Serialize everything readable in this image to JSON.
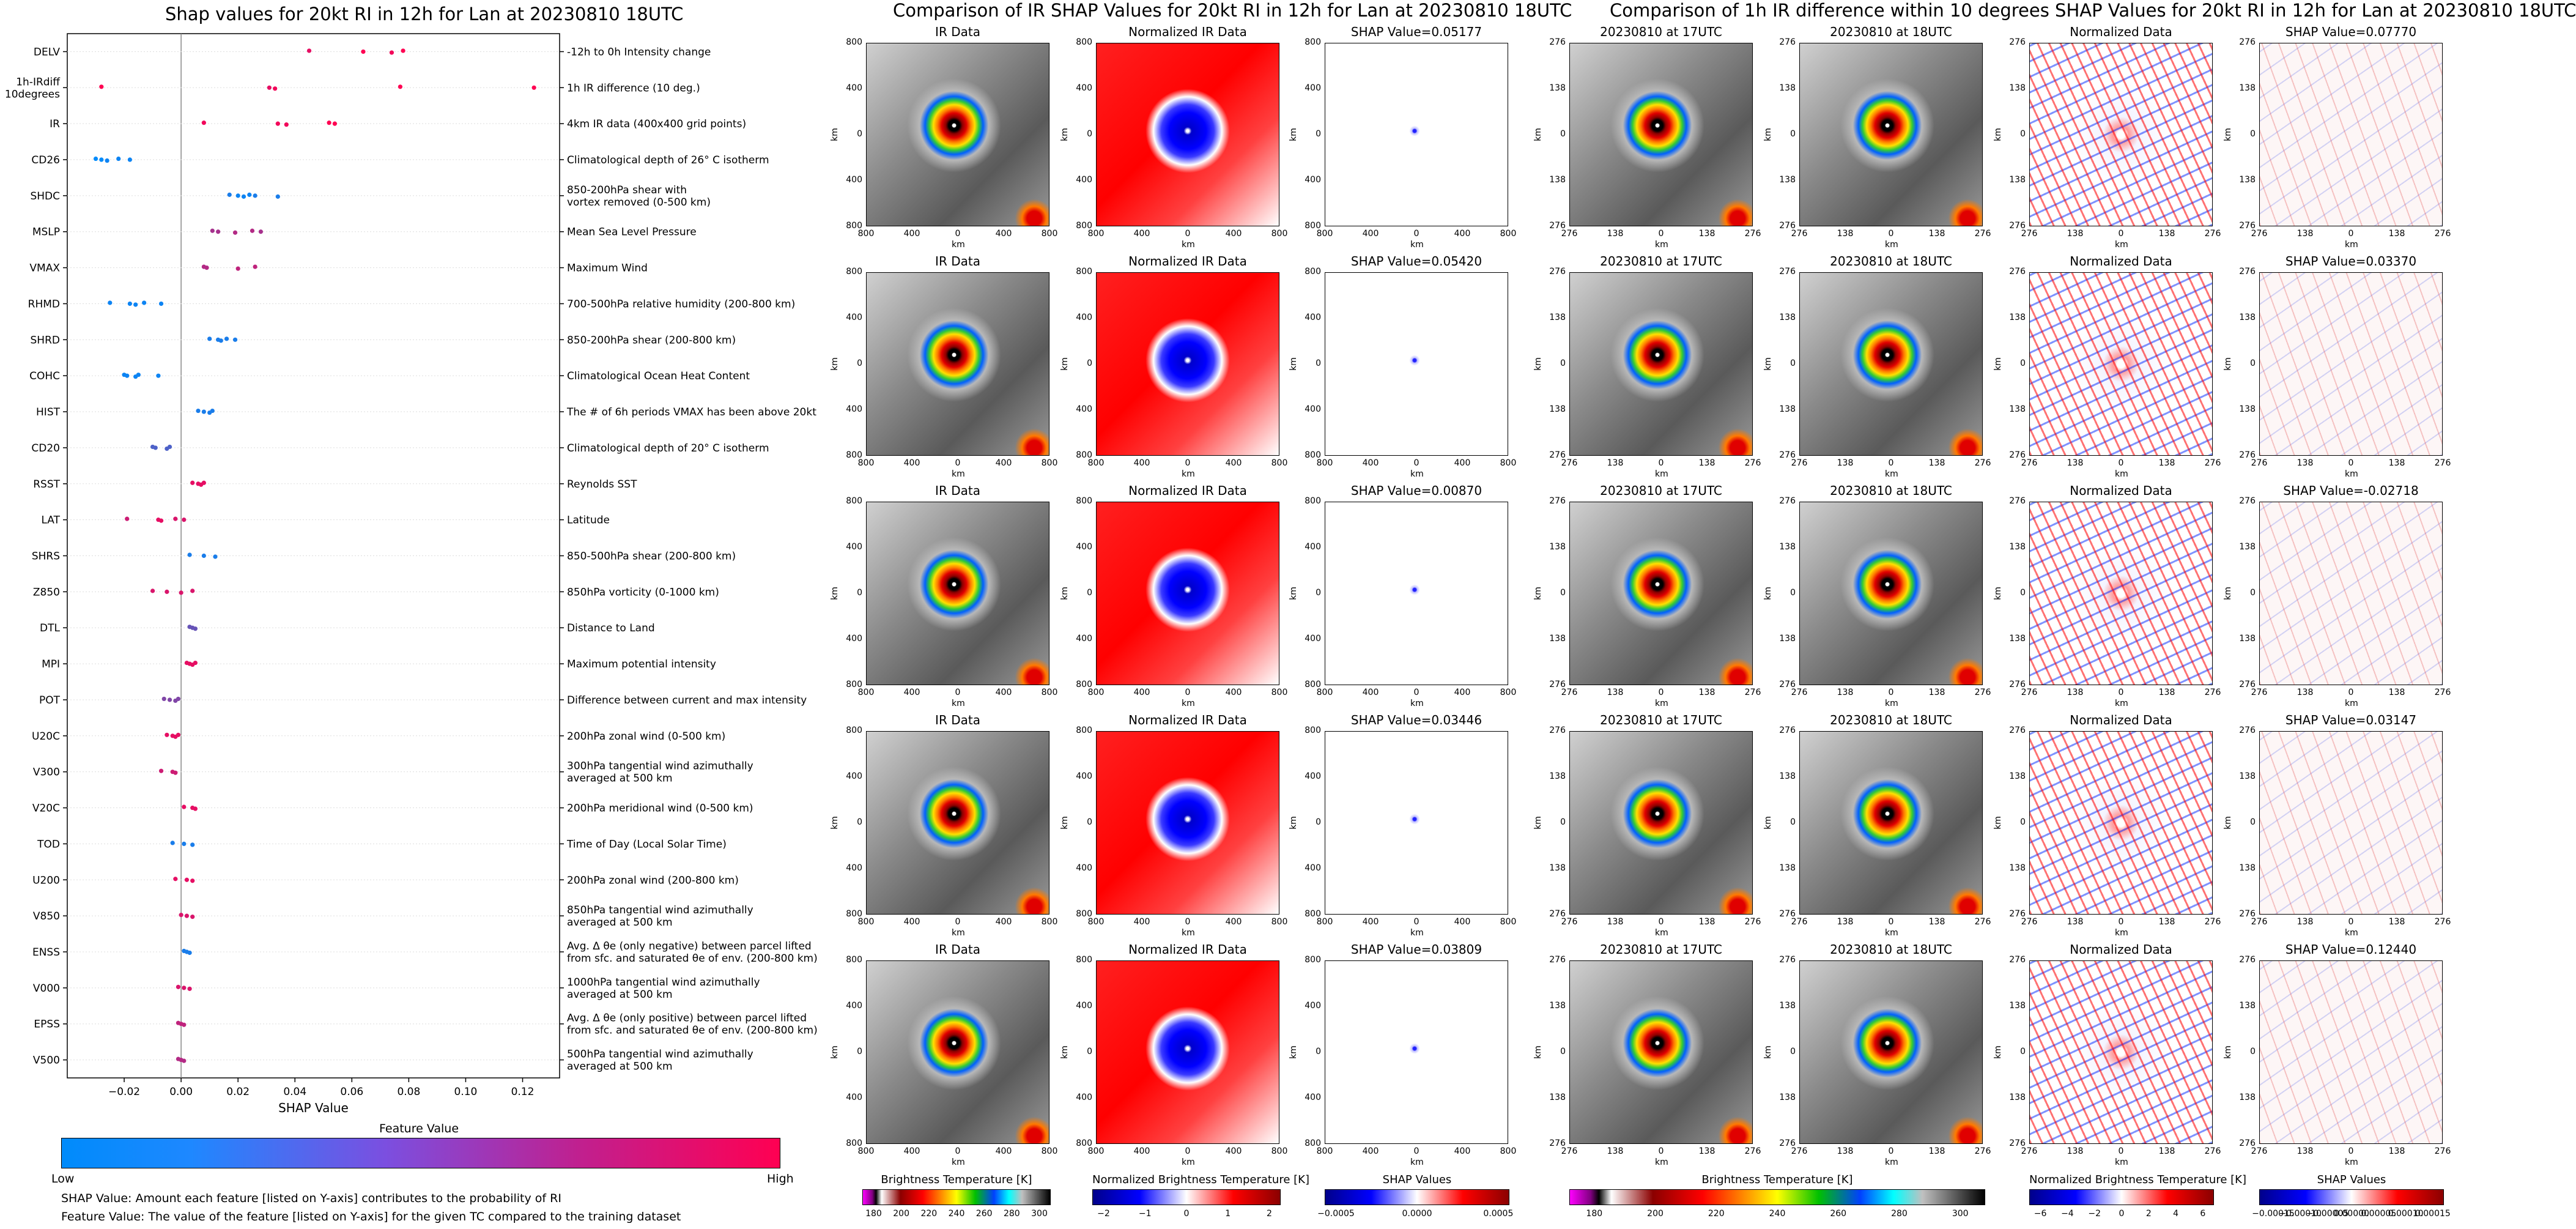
{
  "titles": {
    "left": "Shap values for 20kt RI in 12h for Lan at 20230810 18UTC",
    "middle": "Comparison of IR SHAP Values for 20kt RI in 12h for Lan at 20230810 18UTC",
    "right": "Comparison of 1h IR difference within 10 degrees SHAP Values for 20kt RI in 12h for Lan at 20230810 18UTC"
  },
  "chart_data": [
    {
      "type": "scatter",
      "title": "Shap values for 20kt RI in 12h for Lan at 20230810 18UTC",
      "xlabel": "SHAP Value",
      "ylabel": "",
      "xlim": [
        -0.04,
        0.133
      ],
      "xticks": [
        -0.02,
        0.0,
        0.02,
        0.04,
        0.06,
        0.08,
        0.1,
        0.12
      ],
      "xtick_labels": [
        "−0.02",
        "0.00",
        "0.02",
        "0.04",
        "0.06",
        "0.08",
        "0.10",
        "0.12"
      ],
      "color_label": "Feature Value",
      "color_low": "Low",
      "color_high": "High",
      "color_low_hex": "#008bfb",
      "color_high_hex": "#ff0052",
      "features": [
        {
          "name": "DELV",
          "desc": [
            "-12h to 0h Intensity change"
          ],
          "points": [
            [
              0.045,
              0.9
            ],
            [
              0.064,
              1
            ],
            [
              0.074,
              0.95
            ],
            [
              0.078,
              1
            ]
          ]
        },
        {
          "name": "1h-IRdiff\n10degrees",
          "desc": [
            "1h IR difference (10 deg.)"
          ],
          "points": [
            [
              -0.028,
              1
            ],
            [
              0.031,
              0.9
            ],
            [
              0.033,
              0.95
            ],
            [
              0.077,
              1
            ],
            [
              0.124,
              1
            ]
          ]
        },
        {
          "name": "IR",
          "desc": [
            "4km IR data (400x400 grid points)"
          ],
          "points": [
            [
              0.008,
              0.95
            ],
            [
              0.034,
              0.95
            ],
            [
              0.037,
              0.95
            ],
            [
              0.052,
              1
            ],
            [
              0.054,
              1
            ]
          ]
        },
        {
          "name": "CD26",
          "desc": [
            "Climatological depth of 26° C isotherm"
          ],
          "points": [
            [
              -0.03,
              0
            ],
            [
              -0.028,
              0
            ],
            [
              -0.026,
              0.05
            ],
            [
              -0.022,
              0.05
            ],
            [
              -0.018,
              0.05
            ]
          ]
        },
        {
          "name": "SHDC",
          "desc": [
            "850-200hPa shear with",
            "vortex removed (0-500 km)"
          ],
          "points": [
            [
              0.017,
              0.1
            ],
            [
              0.02,
              0.05
            ],
            [
              0.022,
              0.05
            ],
            [
              0.024,
              0.05
            ],
            [
              0.026,
              0.1
            ],
            [
              0.034,
              0.1
            ]
          ]
        },
        {
          "name": "MSLP",
          "desc": [
            "Mean Sea Level Pressure"
          ],
          "points": [
            [
              0.011,
              0.65
            ],
            [
              0.013,
              0.65
            ],
            [
              0.019,
              0.7
            ],
            [
              0.025,
              0.7
            ],
            [
              0.028,
              0.65
            ]
          ]
        },
        {
          "name": "VMAX",
          "desc": [
            "Maximum Wind"
          ],
          "points": [
            [
              0.008,
              0.7
            ],
            [
              0.009,
              0.7
            ],
            [
              0.02,
              0.75
            ],
            [
              0.026,
              0.75
            ]
          ]
        },
        {
          "name": "RHMD",
          "desc": [
            "700-500hPa relative humidity (200-800 km)"
          ],
          "points": [
            [
              -0.025,
              0.05
            ],
            [
              -0.018,
              0.05
            ],
            [
              -0.016,
              0.05
            ],
            [
              -0.013,
              0.05
            ],
            [
              -0.007,
              0.05
            ]
          ]
        },
        {
          "name": "SHRD",
          "desc": [
            "850-200hPa shear (200-800 km)"
          ],
          "points": [
            [
              0.01,
              0.1
            ],
            [
              0.013,
              0.1
            ],
            [
              0.014,
              0.1
            ],
            [
              0.016,
              0.1
            ],
            [
              0.019,
              0.1
            ]
          ]
        },
        {
          "name": "COHC",
          "desc": [
            "Climatological Ocean Heat Content"
          ],
          "points": [
            [
              -0.02,
              0.05
            ],
            [
              -0.019,
              0.05
            ],
            [
              -0.016,
              0.05
            ],
            [
              -0.015,
              0.05
            ],
            [
              -0.008,
              0.05
            ]
          ]
        },
        {
          "name": "HIST",
          "desc": [
            "The # of 6h periods VMAX has been above 20kt"
          ],
          "points": [
            [
              0.006,
              0.1
            ],
            [
              0.008,
              0.1
            ],
            [
              0.01,
              0.1
            ],
            [
              0.011,
              0.1
            ]
          ]
        },
        {
          "name": "CD20",
          "desc": [
            "Climatological depth of 20° C isotherm"
          ],
          "points": [
            [
              -0.01,
              0.3
            ],
            [
              -0.009,
              0.3
            ],
            [
              -0.005,
              0.3
            ],
            [
              -0.004,
              0.3
            ]
          ]
        },
        {
          "name": "RSST",
          "desc": [
            "Reynolds SST"
          ],
          "points": [
            [
              0.004,
              0.9
            ],
            [
              0.006,
              0.9
            ],
            [
              0.007,
              0.9
            ],
            [
              0.008,
              0.9
            ]
          ]
        },
        {
          "name": "LAT",
          "desc": [
            "Latitude"
          ],
          "points": [
            [
              -0.019,
              0.8
            ],
            [
              -0.008,
              0.9
            ],
            [
              -0.007,
              0.9
            ],
            [
              -0.002,
              0.85
            ],
            [
              0.001,
              0.85
            ]
          ]
        },
        {
          "name": "SHRS",
          "desc": [
            "850-500hPa shear (200-800 km)"
          ],
          "points": [
            [
              0.003,
              0.1
            ],
            [
              0.008,
              0.1
            ],
            [
              0.012,
              0.1
            ]
          ]
        },
        {
          "name": "Z850",
          "desc": [
            "850hPa vorticity (0-1000 km)"
          ],
          "points": [
            [
              -0.01,
              0.85
            ],
            [
              -0.005,
              0.85
            ],
            [
              0.0,
              0.85
            ],
            [
              0.004,
              0.85
            ]
          ]
        },
        {
          "name": "DTL",
          "desc": [
            "Distance to Land"
          ],
          "points": [
            [
              0.003,
              0.4
            ],
            [
              0.004,
              0.4
            ],
            [
              0.005,
              0.4
            ]
          ]
        },
        {
          "name": "MPI",
          "desc": [
            "Maximum potential intensity"
          ],
          "points": [
            [
              0.002,
              0.9
            ],
            [
              0.003,
              0.9
            ],
            [
              0.004,
              0.9
            ],
            [
              0.005,
              0.9
            ]
          ]
        },
        {
          "name": "POT",
          "desc": [
            "Difference between current and max intensity"
          ],
          "points": [
            [
              -0.006,
              0.5
            ],
            [
              -0.004,
              0.5
            ],
            [
              -0.002,
              0.5
            ],
            [
              -0.001,
              0.5
            ]
          ]
        },
        {
          "name": "U20C",
          "desc": [
            "200hPa zonal wind (0-500 km)"
          ],
          "points": [
            [
              -0.005,
              0.9
            ],
            [
              -0.003,
              0.9
            ],
            [
              -0.002,
              0.9
            ],
            [
              -0.001,
              0.9
            ]
          ]
        },
        {
          "name": "V300",
          "desc": [
            "300hPa tangential wind azimuthally",
            "averaged at 500 km"
          ],
          "points": [
            [
              -0.007,
              0.8
            ],
            [
              -0.003,
              0.8
            ],
            [
              -0.002,
              0.8
            ]
          ]
        },
        {
          "name": "V20C",
          "desc": [
            "200hPa meridional wind (0-500 km)"
          ],
          "points": [
            [
              0.001,
              0.9
            ],
            [
              0.004,
              0.9
            ],
            [
              0.005,
              0.9
            ]
          ]
        },
        {
          "name": "TOD",
          "desc": [
            "Time of Day (Local Solar Time)"
          ],
          "points": [
            [
              -0.003,
              0.1
            ],
            [
              0.001,
              0.1
            ],
            [
              0.004,
              0.1
            ]
          ]
        },
        {
          "name": "U200",
          "desc": [
            "200hPa zonal wind (200-800 km)"
          ],
          "points": [
            [
              -0.002,
              0.9
            ],
            [
              0.002,
              0.9
            ],
            [
              0.004,
              0.9
            ]
          ]
        },
        {
          "name": "V850",
          "desc": [
            "850hPa tangential wind azimuthally",
            "averaged at 500 km"
          ],
          "points": [
            [
              0.0,
              0.85
            ],
            [
              0.002,
              0.85
            ],
            [
              0.004,
              0.85
            ]
          ]
        },
        {
          "name": "ENSS",
          "desc": [
            "Avg. Δ θe (only negative) between parcel lifted",
            "from sfc. and saturated θe of env. (200-800 km)"
          ],
          "points": [
            [
              0.001,
              0.1
            ],
            [
              0.002,
              0.1
            ],
            [
              0.003,
              0.1
            ]
          ]
        },
        {
          "name": "V000",
          "desc": [
            "1000hPa tangential wind azimuthally",
            "averaged at 500 km"
          ],
          "points": [
            [
              -0.001,
              0.85
            ],
            [
              0.001,
              0.85
            ],
            [
              0.003,
              0.85
            ]
          ]
        },
        {
          "name": "EPSS",
          "desc": [
            "Avg. Δ θe (only positive) between parcel lifted",
            "from sfc. and saturated θe of env. (200-800 km)"
          ],
          "points": [
            [
              -0.001,
              0.75
            ],
            [
              0.0,
              0.75
            ],
            [
              0.001,
              0.75
            ]
          ]
        },
        {
          "name": "V500",
          "desc": [
            "500hPa tangential wind azimuthally",
            "averaged at 500 km"
          ],
          "points": [
            [
              -0.001,
              0.7
            ],
            [
              0.0,
              0.7
            ],
            [
              0.001,
              0.7
            ]
          ]
        }
      ]
    },
    {
      "type": "heatmap",
      "title": "Comparison of IR SHAP Values for 20kt RI in 12h for Lan at 20230810 18UTC",
      "rows": [
        {
          "shap": "SHAP Value=0.05177"
        },
        {
          "shap": "SHAP Value=0.05420"
        },
        {
          "shap": "SHAP Value=0.00870"
        },
        {
          "shap": "SHAP Value=0.03446"
        },
        {
          "shap": "SHAP Value=0.03809"
        }
      ],
      "panel_titles": [
        "IR Data",
        "Normalized IR Data"
      ],
      "axis_unit": "km",
      "x_ticks": [
        "800",
        "400",
        "0",
        "400",
        "800"
      ],
      "y_ticks": [
        "800",
        "400",
        "0",
        "400",
        "800"
      ]
    },
    {
      "type": "heatmap",
      "title": "Comparison of 1h IR difference within 10 degrees SHAP Values for 20kt RI in 12h for Lan at 20230810 18UTC",
      "rows": [
        {
          "shap": "SHAP Value=0.07770"
        },
        {
          "shap": "SHAP Value=0.03370"
        },
        {
          "shap": "SHAP Value=-0.02718"
        },
        {
          "shap": "SHAP Value=0.03147"
        },
        {
          "shap": "SHAP Value=0.12440"
        }
      ],
      "panel_titles": [
        "20230810 at 17UTC",
        "20230810 at 18UTC",
        "Normalized Data"
      ],
      "axis_unit": "km",
      "x_ticks": [
        "276",
        "138",
        "0",
        "138",
        "276"
      ],
      "y_ticks": [
        "276",
        "138",
        "0",
        "138",
        "276"
      ]
    }
  ],
  "colorbars": [
    {
      "label": "Brightness Temperature [K]",
      "ticks": [
        "180",
        "200",
        "220",
        "240",
        "260",
        "280",
        "300"
      ]
    },
    {
      "label": "Normalized Brightness Temperature [K]",
      "ticks": [
        "−2",
        "−1",
        "0",
        "1",
        "2"
      ]
    },
    {
      "label": "SHAP Values",
      "ticks": [
        "−0.0005",
        "0.0000",
        "0.0005"
      ]
    },
    {
      "label": "Brightness Temperature [K]",
      "ticks": [
        "180",
        "200",
        "220",
        "240",
        "260",
        "280",
        "300"
      ]
    },
    {
      "label": "Normalized Brightness Temperature [K]",
      "ticks": [
        "−6",
        "−4",
        "−2",
        "0",
        "2",
        "4",
        "6"
      ]
    },
    {
      "label": "SHAP Values",
      "ticks": [
        "−0.00015",
        "−0.00010",
        "−0.00005",
        "0.00000",
        "0.00005",
        "0.00010",
        "0.00015"
      ]
    }
  ],
  "legend_notes": {
    "line1": "SHAP Value: Amount each feature [listed on Y-axis] contributes to the probability of RI",
    "line2": "Feature Value: The value of the feature [listed on Y-axis] for the given TC compared to the training dataset"
  }
}
